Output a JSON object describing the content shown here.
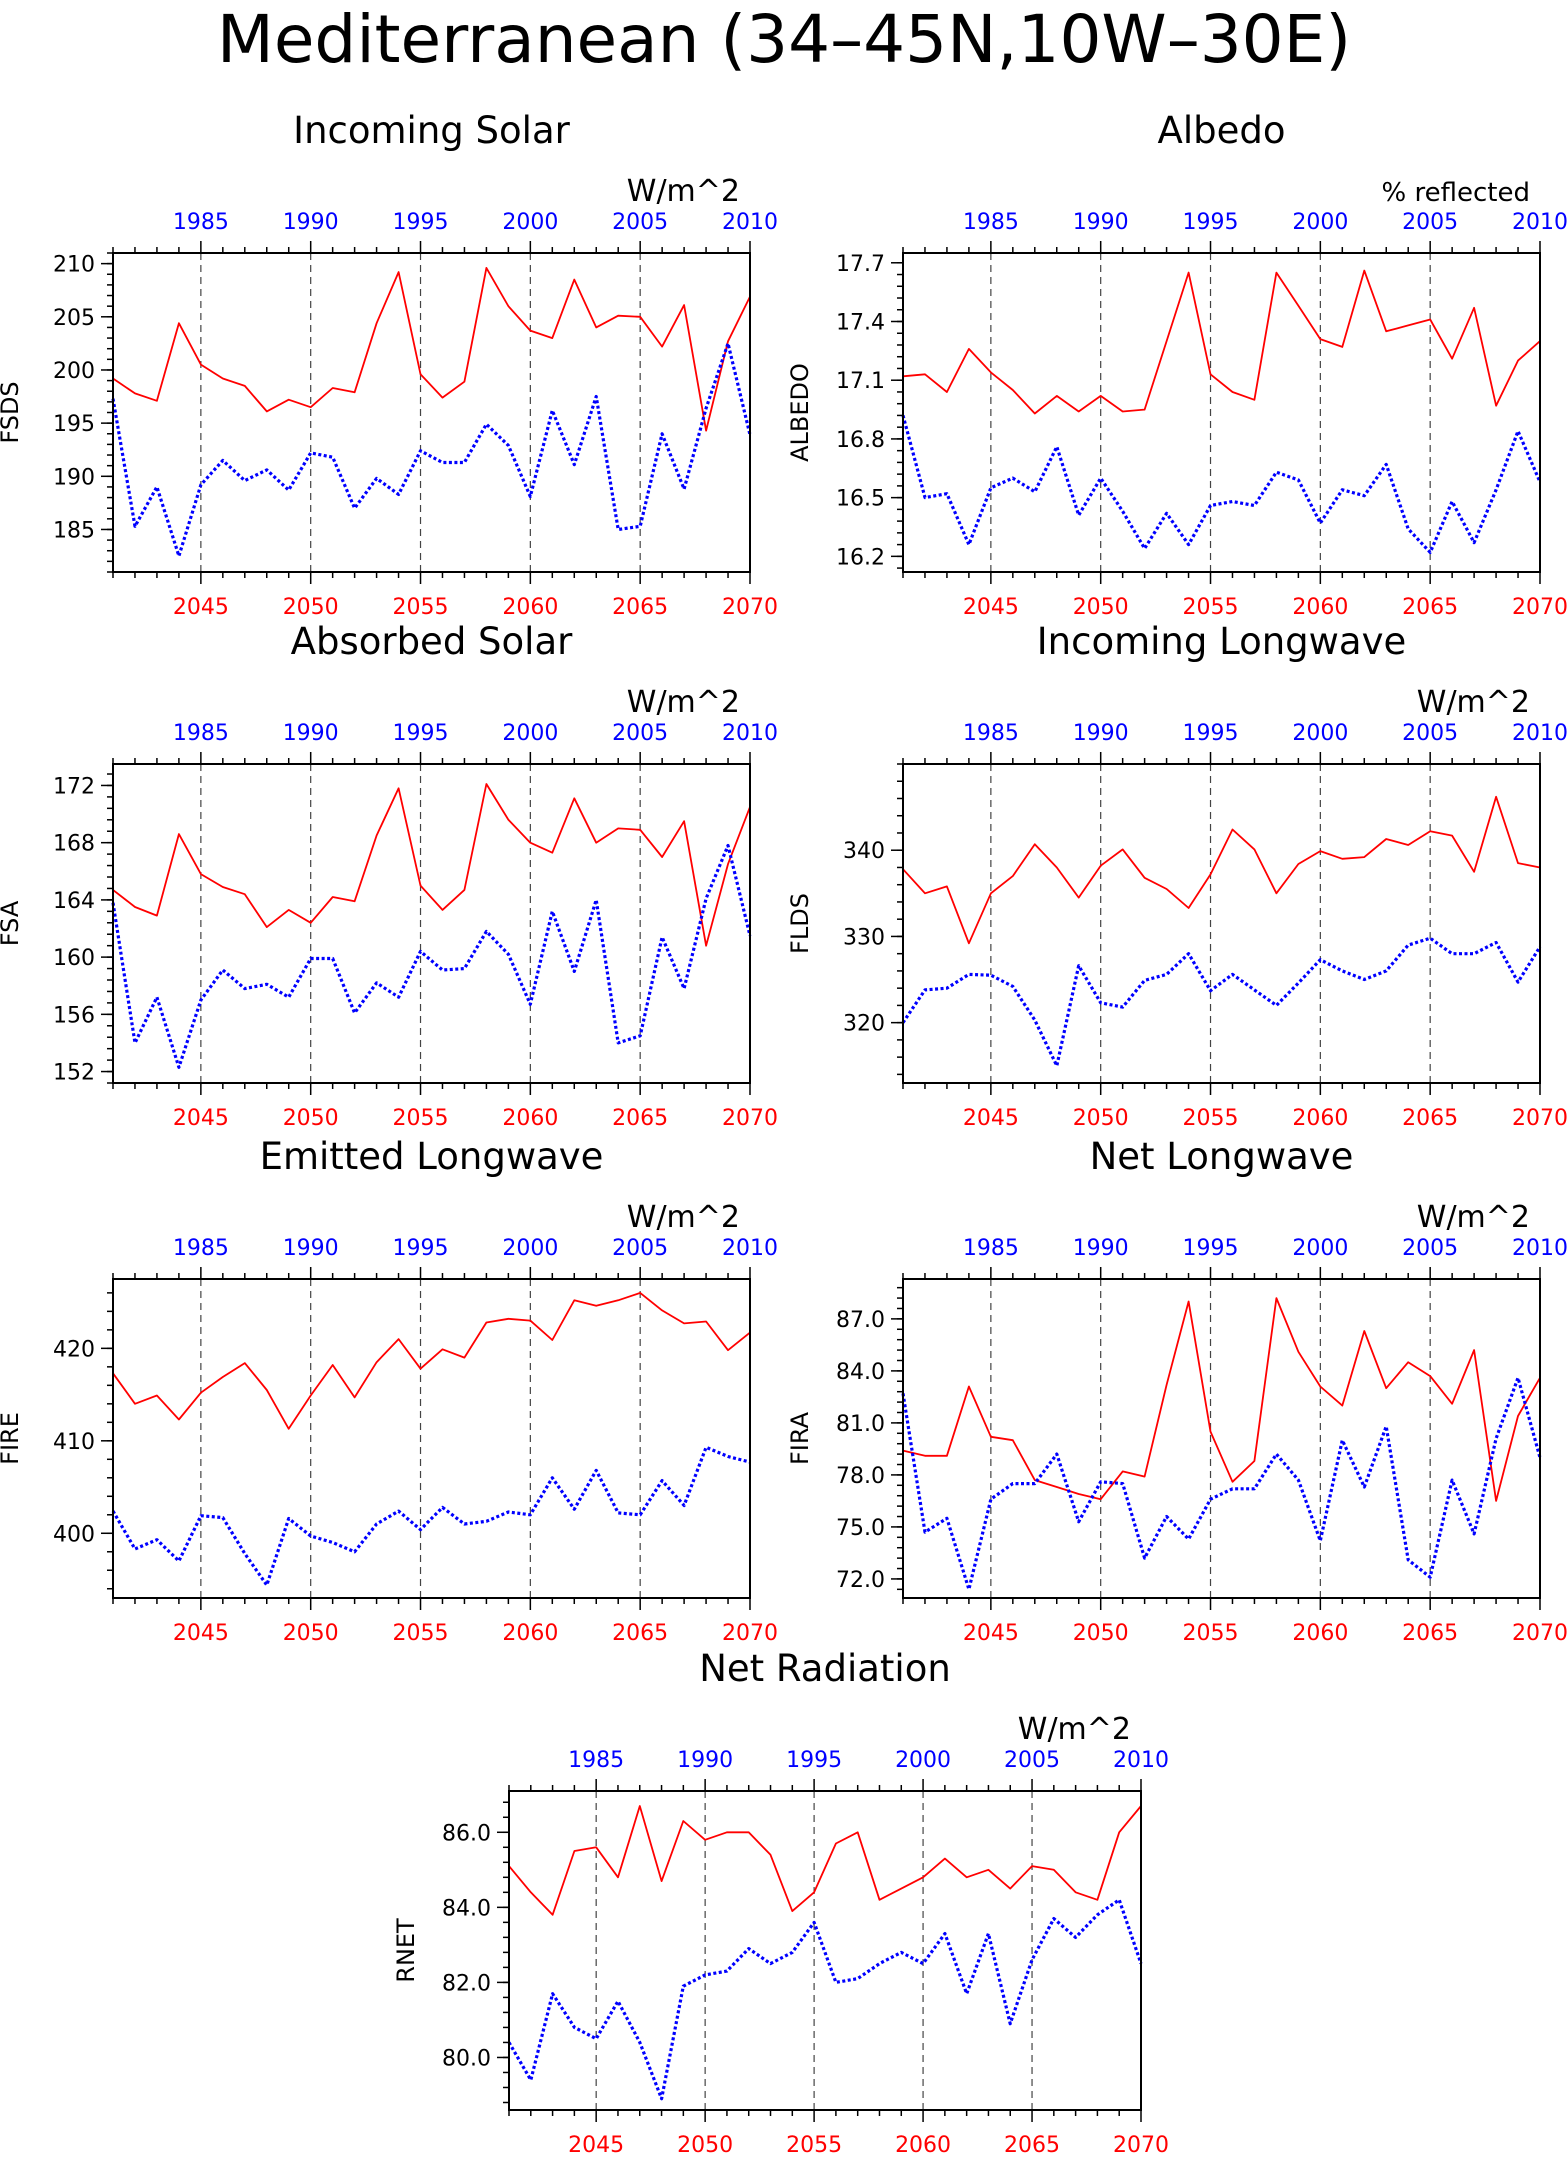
{
  "page_title": "Mediterranean (34–45N,10W–30E)",
  "colors": {
    "red": "#ff0000",
    "blue": "#0000ff",
    "axis": "#000000"
  },
  "shared": {
    "bottom_axis_range": [
      2041,
      2070
    ],
    "bottom_ticks": [
      2045,
      2050,
      2055,
      2060,
      2065,
      2070
    ],
    "top_axis_offset_years": 60,
    "top_ticks": [
      1985,
      1990,
      1995,
      2000,
      2005,
      2010
    ]
  },
  "chart_data": [
    {
      "type": "line",
      "title": "Incoming Solar",
      "ylabel": "FSDS",
      "units": "W/m^2",
      "ylim": [
        181,
        211
      ],
      "yticks": [
        "185",
        "190",
        "195",
        "200",
        "205",
        "210"
      ],
      "x": [
        2041,
        2042,
        2043,
        2044,
        2045,
        2046,
        2047,
        2048,
        2049,
        2050,
        2051,
        2052,
        2053,
        2054,
        2055,
        2056,
        2057,
        2058,
        2059,
        2060,
        2061,
        2062,
        2063,
        2064,
        2065,
        2066,
        2067,
        2068,
        2069,
        2070
      ],
      "series": [
        {
          "color": "red",
          "style": "solid",
          "values": [
            199.2,
            197.8,
            197.1,
            204.4,
            200.5,
            199.2,
            198.5,
            196.1,
            197.2,
            196.5,
            198.3,
            197.9,
            204.4,
            209.2,
            199.6,
            197.4,
            198.9,
            209.6,
            206.0,
            203.7,
            203.0,
            208.5,
            204.0,
            205.1,
            205.0,
            202.2,
            206.1,
            194.3,
            202.7,
            206.9
          ]
        },
        {
          "color": "blue",
          "style": "dotted",
          "values": [
            197.3,
            185.3,
            189.0,
            182.5,
            189.2,
            191.5,
            189.6,
            190.6,
            188.7,
            192.2,
            191.8,
            187.0,
            189.8,
            188.3,
            192.4,
            191.3,
            191.3,
            194.9,
            192.9,
            188.1,
            196.2,
            191.1,
            197.5,
            185.0,
            185.3,
            194.0,
            188.8,
            196.4,
            202.5,
            193.9
          ]
        }
      ]
    },
    {
      "type": "line",
      "title": "Albedo",
      "ylabel": "ALBEDO",
      "units": "% reflected",
      "ylim": [
        16.12,
        17.75
      ],
      "yticks": [
        "16.2",
        "16.5",
        "16.8",
        "17.1",
        "17.4",
        "17.7"
      ],
      "x": [
        2041,
        2042,
        2043,
        2044,
        2045,
        2046,
        2047,
        2048,
        2049,
        2050,
        2051,
        2052,
        2053,
        2054,
        2055,
        2056,
        2057,
        2058,
        2059,
        2060,
        2061,
        2062,
        2063,
        2064,
        2065,
        2066,
        2067,
        2068,
        2069,
        2070
      ],
      "series": [
        {
          "color": "red",
          "style": "solid",
          "values": [
            17.12,
            17.13,
            17.04,
            17.26,
            17.14,
            17.05,
            16.93,
            17.02,
            16.94,
            17.02,
            16.94,
            16.95,
            17.3,
            17.65,
            17.13,
            17.04,
            17.0,
            17.65,
            17.48,
            17.31,
            17.27,
            17.66,
            17.35,
            17.38,
            17.41,
            17.21,
            17.47,
            16.97,
            17.2,
            17.3
          ]
        },
        {
          "color": "blue",
          "style": "dotted",
          "values": [
            16.92,
            16.5,
            16.52,
            16.26,
            16.55,
            16.6,
            16.53,
            16.76,
            16.41,
            16.6,
            16.43,
            16.24,
            16.42,
            16.26,
            16.46,
            16.48,
            16.46,
            16.63,
            16.59,
            16.37,
            16.54,
            16.51,
            16.67,
            16.34,
            16.22,
            16.48,
            16.27,
            16.54,
            16.84,
            16.58
          ]
        }
      ]
    },
    {
      "type": "line",
      "title": "Absorbed Solar",
      "ylabel": "FSA",
      "units": "W/m^2",
      "ylim": [
        151.2,
        173.5
      ],
      "yticks": [
        "152",
        "156",
        "160",
        "164",
        "168",
        "172"
      ],
      "x": [
        2041,
        2042,
        2043,
        2044,
        2045,
        2046,
        2047,
        2048,
        2049,
        2050,
        2051,
        2052,
        2053,
        2054,
        2055,
        2056,
        2057,
        2058,
        2059,
        2060,
        2061,
        2062,
        2063,
        2064,
        2065,
        2066,
        2067,
        2068,
        2069,
        2070
      ],
      "series": [
        {
          "color": "red",
          "style": "solid",
          "values": [
            164.7,
            163.5,
            162.9,
            168.6,
            165.8,
            164.9,
            164.4,
            162.1,
            163.3,
            162.4,
            164.2,
            163.9,
            168.5,
            171.8,
            165.0,
            163.3,
            164.7,
            172.1,
            169.6,
            168.0,
            167.3,
            171.1,
            168.0,
            169.0,
            168.9,
            167.0,
            169.5,
            160.8,
            166.5,
            170.5
          ]
        },
        {
          "color": "blue",
          "style": "dotted",
          "values": [
            163.8,
            154.0,
            157.2,
            152.3,
            157.0,
            159.1,
            157.8,
            158.1,
            157.2,
            159.9,
            159.9,
            156.1,
            158.2,
            157.2,
            160.4,
            159.1,
            159.2,
            161.8,
            160.2,
            156.7,
            163.2,
            159.0,
            164.0,
            154.0,
            154.5,
            161.4,
            157.8,
            164.1,
            167.8,
            161.5
          ]
        }
      ]
    },
    {
      "type": "line",
      "title": "Incoming Longwave",
      "ylabel": "FLDS",
      "units": "W/m^2",
      "ylim": [
        313,
        350
      ],
      "yticks": [
        "320",
        "330",
        "340"
      ],
      "x": [
        2041,
        2042,
        2043,
        2044,
        2045,
        2046,
        2047,
        2048,
        2049,
        2050,
        2051,
        2052,
        2053,
        2054,
        2055,
        2056,
        2057,
        2058,
        2059,
        2060,
        2061,
        2062,
        2063,
        2064,
        2065,
        2066,
        2067,
        2068,
        2069,
        2070
      ],
      "series": [
        {
          "color": "red",
          "style": "solid",
          "values": [
            337.8,
            335.0,
            335.8,
            329.2,
            335.0,
            337.0,
            340.7,
            338.0,
            334.5,
            338.2,
            340.1,
            336.8,
            335.5,
            333.3,
            337.2,
            342.4,
            340.1,
            335.0,
            338.4,
            339.9,
            339.0,
            339.2,
            341.3,
            340.6,
            342.2,
            341.7,
            337.5,
            346.2,
            338.5,
            338.0
          ]
        },
        {
          "color": "blue",
          "style": "dotted",
          "values": [
            320.0,
            323.8,
            324.0,
            325.6,
            325.5,
            324.2,
            320.3,
            315.0,
            326.6,
            322.3,
            321.8,
            324.9,
            325.6,
            328.0,
            323.7,
            325.6,
            323.8,
            322.0,
            324.6,
            327.3,
            326.0,
            325.0,
            326.0,
            329.0,
            329.8,
            328.0,
            328.0,
            329.3,
            324.7,
            328.8
          ]
        }
      ]
    },
    {
      "type": "line",
      "title": "Emitted Longwave",
      "ylabel": "FIRE",
      "units": "W/m^2",
      "ylim": [
        393,
        427.5
      ],
      "yticks": [
        "400",
        "410",
        "420"
      ],
      "x": [
        2041,
        2042,
        2043,
        2044,
        2045,
        2046,
        2047,
        2048,
        2049,
        2050,
        2051,
        2052,
        2053,
        2054,
        2055,
        2056,
        2057,
        2058,
        2059,
        2060,
        2061,
        2062,
        2063,
        2064,
        2065,
        2066,
        2067,
        2068,
        2069,
        2070
      ],
      "series": [
        {
          "color": "red",
          "style": "solid",
          "values": [
            417.3,
            414.0,
            414.9,
            412.3,
            415.2,
            416.9,
            418.4,
            415.5,
            411.3,
            414.9,
            418.2,
            414.7,
            418.5,
            421.0,
            417.8,
            419.9,
            419.0,
            422.8,
            423.2,
            423.0,
            420.9,
            425.2,
            424.6,
            425.2,
            426.0,
            424.1,
            422.7,
            422.9,
            419.8,
            421.7
          ]
        },
        {
          "color": "blue",
          "style": "dotted",
          "values": [
            402.4,
            398.3,
            399.3,
            397.0,
            401.9,
            401.7,
            397.8,
            394.4,
            401.6,
            399.7,
            399.0,
            398.0,
            401.0,
            402.4,
            400.4,
            402.8,
            401.0,
            401.3,
            402.3,
            402.0,
            406.0,
            402.6,
            406.8,
            402.2,
            402.0,
            405.7,
            403.0,
            409.3,
            408.3,
            407.7
          ]
        }
      ]
    },
    {
      "type": "line",
      "title": "Net Longwave",
      "ylabel": "FIRA",
      "units": "W/m^2",
      "ylim": [
        70.9,
        89.3
      ],
      "yticks": [
        "72.0",
        "75.0",
        "78.0",
        "81.0",
        "84.0",
        "87.0"
      ],
      "x": [
        2041,
        2042,
        2043,
        2044,
        2045,
        2046,
        2047,
        2048,
        2049,
        2050,
        2051,
        2052,
        2053,
        2054,
        2055,
        2056,
        2057,
        2058,
        2059,
        2060,
        2061,
        2062,
        2063,
        2064,
        2065,
        2066,
        2067,
        2068,
        2069,
        2070
      ],
      "series": [
        {
          "color": "red",
          "style": "solid",
          "values": [
            79.4,
            79.1,
            79.1,
            83.1,
            80.2,
            80.0,
            77.7,
            77.3,
            76.9,
            76.6,
            78.2,
            77.9,
            83.2,
            88.0,
            80.5,
            77.6,
            78.8,
            88.2,
            85.1,
            83.1,
            82.0,
            86.3,
            83.0,
            84.5,
            83.7,
            82.1,
            85.2,
            76.5,
            81.4,
            83.6
          ]
        },
        {
          "color": "blue",
          "style": "dotted",
          "values": [
            82.7,
            74.7,
            75.5,
            71.4,
            76.6,
            77.5,
            77.5,
            79.2,
            75.3,
            77.6,
            77.5,
            73.2,
            75.6,
            74.3,
            76.6,
            77.2,
            77.2,
            79.2,
            77.7,
            74.2,
            80.0,
            77.3,
            80.8,
            73.1,
            72.1,
            77.7,
            74.6,
            80.1,
            83.6,
            79.0
          ]
        }
      ]
    },
    {
      "type": "line",
      "title": "Net Radiation",
      "ylabel": "RNET",
      "units": "W/m^2",
      "ylim": [
        78.6,
        87.1
      ],
      "yticks": [
        "80.0",
        "82.0",
        "84.0",
        "86.0"
      ],
      "x": [
        2041,
        2042,
        2043,
        2044,
        2045,
        2046,
        2047,
        2048,
        2049,
        2050,
        2051,
        2052,
        2053,
        2054,
        2055,
        2056,
        2057,
        2058,
        2059,
        2060,
        2061,
        2062,
        2063,
        2064,
        2065,
        2066,
        2067,
        2068,
        2069,
        2070
      ],
      "series": [
        {
          "color": "red",
          "style": "solid",
          "values": [
            85.1,
            84.4,
            83.8,
            85.5,
            85.6,
            84.8,
            86.7,
            84.7,
            86.3,
            85.8,
            86.0,
            86.0,
            85.4,
            83.9,
            84.4,
            85.7,
            86.0,
            84.2,
            84.5,
            84.8,
            85.3,
            84.8,
            85.0,
            84.5,
            85.1,
            85.0,
            84.4,
            84.2,
            86.0,
            86.7
          ]
        },
        {
          "color": "blue",
          "style": "dotted",
          "values": [
            80.4,
            79.4,
            81.7,
            80.8,
            80.5,
            81.5,
            80.4,
            78.9,
            81.9,
            82.2,
            82.3,
            82.9,
            82.5,
            82.8,
            83.6,
            82.0,
            82.1,
            82.5,
            82.8,
            82.5,
            83.3,
            81.7,
            83.3,
            80.9,
            82.6,
            83.7,
            83.2,
            83.8,
            84.2,
            82.5
          ]
        }
      ]
    }
  ]
}
